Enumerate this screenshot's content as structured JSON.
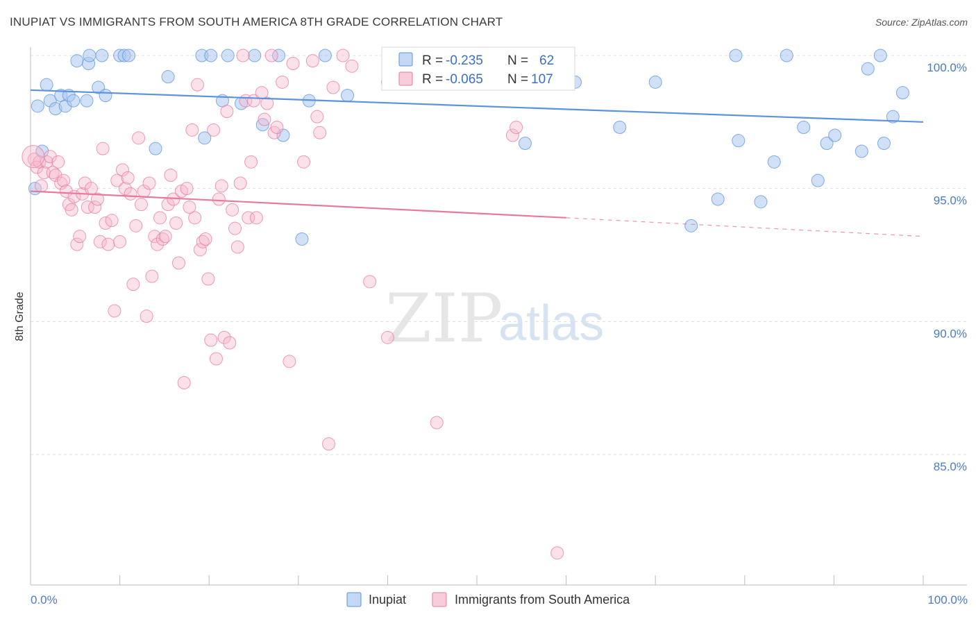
{
  "header": {
    "title": "INUPIAT VS IMMIGRANTS FROM SOUTH AMERICA 8TH GRADE CORRELATION CHART",
    "source": "Source: ZipAtlas.com"
  },
  "watermark": {
    "zip": "ZIP",
    "atlas": "atlas"
  },
  "legend_top": {
    "rows": [
      {
        "r_label": "R =",
        "r_value": "-0.235",
        "n_label": "N =",
        "n_value": "62",
        "color": "#a9c7ef"
      },
      {
        "r_label": "R =",
        "r_value": "-0.065",
        "n_label": "N =",
        "n_value": "107",
        "color": "#f5b8cc"
      }
    ]
  },
  "legend_bottom": [
    {
      "label": "Inupiat",
      "color": "#a9c7ef"
    },
    {
      "label": "Immigrants from South America",
      "color": "#f5b8cc"
    }
  ],
  "chart_data": {
    "type": "scatter",
    "xlabel": "",
    "ylabel": "8th Grade",
    "xlim": [
      0,
      100
    ],
    "ylim": [
      80.5,
      100.8
    ],
    "x_tick_labels": [
      "0.0%",
      "100.0%"
    ],
    "y_ticks": [
      {
        "value": 100,
        "label": "100.0%"
      },
      {
        "value": 95,
        "label": "95.0%"
      },
      {
        "value": 90,
        "label": "90.0%"
      },
      {
        "value": 85,
        "label": "85.0%"
      }
    ],
    "grid": true,
    "series": [
      {
        "name": "Inupiat",
        "color": "#5b93dd",
        "fill": "#a9c7ef",
        "trend": {
          "x": [
            0,
            100
          ],
          "y": [
            98.7,
            97.5
          ]
        },
        "points": [
          [
            0.5,
            95.0
          ],
          [
            0.8,
            98.1
          ],
          [
            1.3,
            96.4
          ],
          [
            1.8,
            98.9
          ],
          [
            2.2,
            98.3
          ],
          [
            2.8,
            98.0
          ],
          [
            3.4,
            98.5
          ],
          [
            3.9,
            98.1
          ],
          [
            4.3,
            98.5
          ],
          [
            4.8,
            98.3
          ],
          [
            5.2,
            99.8
          ],
          [
            6.3,
            98.3
          ],
          [
            6.5,
            99.7
          ],
          [
            6.6,
            100.0
          ],
          [
            7.6,
            98.8
          ],
          [
            8.0,
            100.0
          ],
          [
            8.4,
            98.5
          ],
          [
            10.0,
            100.0
          ],
          [
            10.5,
            100.0
          ],
          [
            11.0,
            100.0
          ],
          [
            14.0,
            96.5
          ],
          [
            15.4,
            99.2
          ],
          [
            19.2,
            100.0
          ],
          [
            19.5,
            96.9
          ],
          [
            20.2,
            100.0
          ],
          [
            21.5,
            98.3
          ],
          [
            22.1,
            100.0
          ],
          [
            23.6,
            98.2
          ],
          [
            25.1,
            100.0
          ],
          [
            26.0,
            97.4
          ],
          [
            27.8,
            100.0
          ],
          [
            28.3,
            97.0
          ],
          [
            30.4,
            93.1
          ],
          [
            31.2,
            98.3
          ],
          [
            33.0,
            100.0
          ],
          [
            35.5,
            98.5
          ],
          [
            40.0,
            99.0
          ],
          [
            48.0,
            100.0
          ],
          [
            51.5,
            100.0
          ],
          [
            52.4,
            99.0
          ],
          [
            55.4,
            96.7
          ],
          [
            58.1,
            100.0
          ],
          [
            61.0,
            99.0
          ],
          [
            66.0,
            97.3
          ],
          [
            70.0,
            99.0
          ],
          [
            74.0,
            93.6
          ],
          [
            77.0,
            94.6
          ],
          [
            79.0,
            100.0
          ],
          [
            79.3,
            96.8
          ],
          [
            81.8,
            94.5
          ],
          [
            83.3,
            96.0
          ],
          [
            84.7,
            100.0
          ],
          [
            86.6,
            97.3
          ],
          [
            88.2,
            95.3
          ],
          [
            89.2,
            96.7
          ],
          [
            90.1,
            97.0
          ],
          [
            93.1,
            96.4
          ],
          [
            93.8,
            99.5
          ],
          [
            95.2,
            100.0
          ],
          [
            95.6,
            96.7
          ],
          [
            96.6,
            97.7
          ],
          [
            97.7,
            98.6
          ]
        ]
      },
      {
        "name": "Immigrants from South America",
        "color": "#e8799e",
        "fill": "#f5b8cc",
        "trend": {
          "x": [
            0,
            60
          ],
          "y": [
            94.9,
            93.9
          ]
        },
        "trend_dashed": {
          "x": [
            60,
            100
          ],
          "y": [
            93.9,
            93.2
          ]
        },
        "points": [
          [
            0.4,
            96.1
          ],
          [
            0.7,
            95.8
          ],
          [
            1.0,
            96.0
          ],
          [
            1.2,
            95.1
          ],
          [
            1.5,
            95.6
          ],
          [
            1.8,
            96.0
          ],
          [
            2.2,
            96.2
          ],
          [
            2.5,
            95.6
          ],
          [
            2.8,
            95.5
          ],
          [
            3.1,
            96.0
          ],
          [
            3.4,
            95.2
          ],
          [
            3.7,
            95.3
          ],
          [
            4.0,
            94.9
          ],
          [
            4.3,
            94.4
          ],
          [
            4.6,
            94.2
          ],
          [
            4.9,
            94.7
          ],
          [
            5.2,
            92.9
          ],
          [
            5.5,
            93.2
          ],
          [
            5.8,
            94.8
          ],
          [
            6.1,
            95.2
          ],
          [
            6.4,
            94.3
          ],
          [
            6.8,
            95.0
          ],
          [
            7.2,
            94.3
          ],
          [
            7.5,
            94.6
          ],
          [
            7.8,
            93.0
          ],
          [
            8.1,
            96.5
          ],
          [
            8.4,
            93.7
          ],
          [
            8.7,
            92.9
          ],
          [
            9.1,
            93.8
          ],
          [
            9.4,
            90.4
          ],
          [
            9.7,
            95.3
          ],
          [
            10.0,
            93.0
          ],
          [
            10.3,
            95.7
          ],
          [
            10.6,
            95.0
          ],
          [
            10.9,
            95.4
          ],
          [
            11.2,
            94.8
          ],
          [
            11.5,
            91.4
          ],
          [
            11.8,
            93.6
          ],
          [
            12.1,
            96.9
          ],
          [
            12.4,
            94.4
          ],
          [
            12.7,
            94.9
          ],
          [
            13.0,
            90.2
          ],
          [
            13.3,
            95.2
          ],
          [
            13.6,
            91.7
          ],
          [
            13.9,
            93.2
          ],
          [
            14.2,
            92.9
          ],
          [
            14.5,
            93.9
          ],
          [
            14.8,
            93.1
          ],
          [
            15.1,
            93.2
          ],
          [
            15.4,
            94.4
          ],
          [
            15.7,
            95.5
          ],
          [
            16.0,
            94.6
          ],
          [
            16.3,
            93.7
          ],
          [
            16.6,
            92.2
          ],
          [
            16.9,
            94.9
          ],
          [
            17.2,
            87.7
          ],
          [
            17.5,
            95.0
          ],
          [
            17.8,
            94.3
          ],
          [
            18.1,
            97.2
          ],
          [
            18.4,
            93.9
          ],
          [
            18.7,
            98.9
          ],
          [
            19.0,
            92.7
          ],
          [
            19.3,
            93.0
          ],
          [
            19.6,
            93.1
          ],
          [
            19.9,
            91.6
          ],
          [
            20.2,
            89.3
          ],
          [
            20.5,
            97.2
          ],
          [
            20.8,
            88.6
          ],
          [
            21.1,
            94.6
          ],
          [
            21.4,
            95.1
          ],
          [
            21.7,
            89.4
          ],
          [
            22.0,
            97.9
          ],
          [
            22.3,
            89.2
          ],
          [
            22.6,
            94.2
          ],
          [
            22.9,
            93.5
          ],
          [
            23.2,
            92.8
          ],
          [
            23.5,
            95.2
          ],
          [
            23.8,
            100.0
          ],
          [
            24.1,
            98.3
          ],
          [
            24.4,
            93.9
          ],
          [
            24.7,
            96.0
          ],
          [
            25.0,
            98.3
          ],
          [
            25.3,
            93.9
          ],
          [
            25.9,
            98.6
          ],
          [
            26.2,
            97.6
          ],
          [
            26.5,
            98.2
          ],
          [
            27.0,
            100.0
          ],
          [
            27.3,
            97.1
          ],
          [
            27.6,
            97.3
          ],
          [
            28.2,
            99.0
          ],
          [
            29.0,
            88.5
          ],
          [
            29.4,
            99.7
          ],
          [
            30.6,
            96.0
          ],
          [
            31.6,
            99.8
          ],
          [
            32.1,
            97.7
          ],
          [
            32.4,
            97.1
          ],
          [
            33.4,
            85.4
          ],
          [
            33.9,
            98.8
          ],
          [
            35.0,
            100.0
          ],
          [
            36.0,
            99.6
          ],
          [
            38.0,
            91.5
          ],
          [
            40.0,
            89.4
          ],
          [
            45.5,
            86.2
          ],
          [
            54.0,
            97.0
          ],
          [
            54.4,
            97.3
          ],
          [
            59.0,
            81.3
          ],
          [
            0.3,
            96.2
          ]
        ]
      }
    ]
  }
}
